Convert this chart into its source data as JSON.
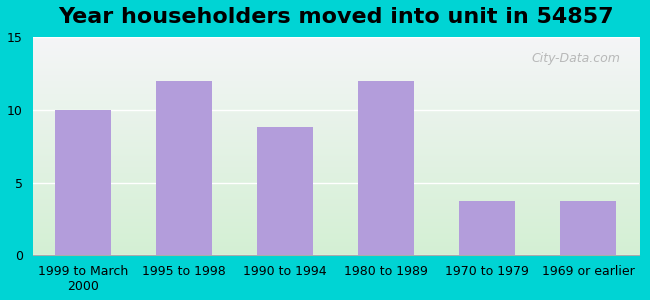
{
  "title": "Year householders moved into unit in 54857",
  "categories": [
    "1999 to March\n2000",
    "1995 to 1998",
    "1990 to 1994",
    "1980 to 1989",
    "1970 to 1979",
    "1969 or earlier"
  ],
  "values": [
    10,
    12,
    8.8,
    12,
    3.7,
    3.7
  ],
  "bar_color": "#b39ddb",
  "background_outer": "#00d4d4",
  "ylim": [
    0,
    15
  ],
  "yticks": [
    0,
    5,
    10,
    15
  ],
  "title_fontsize": 16,
  "tick_fontsize": 9,
  "watermark": "City-Data.com"
}
